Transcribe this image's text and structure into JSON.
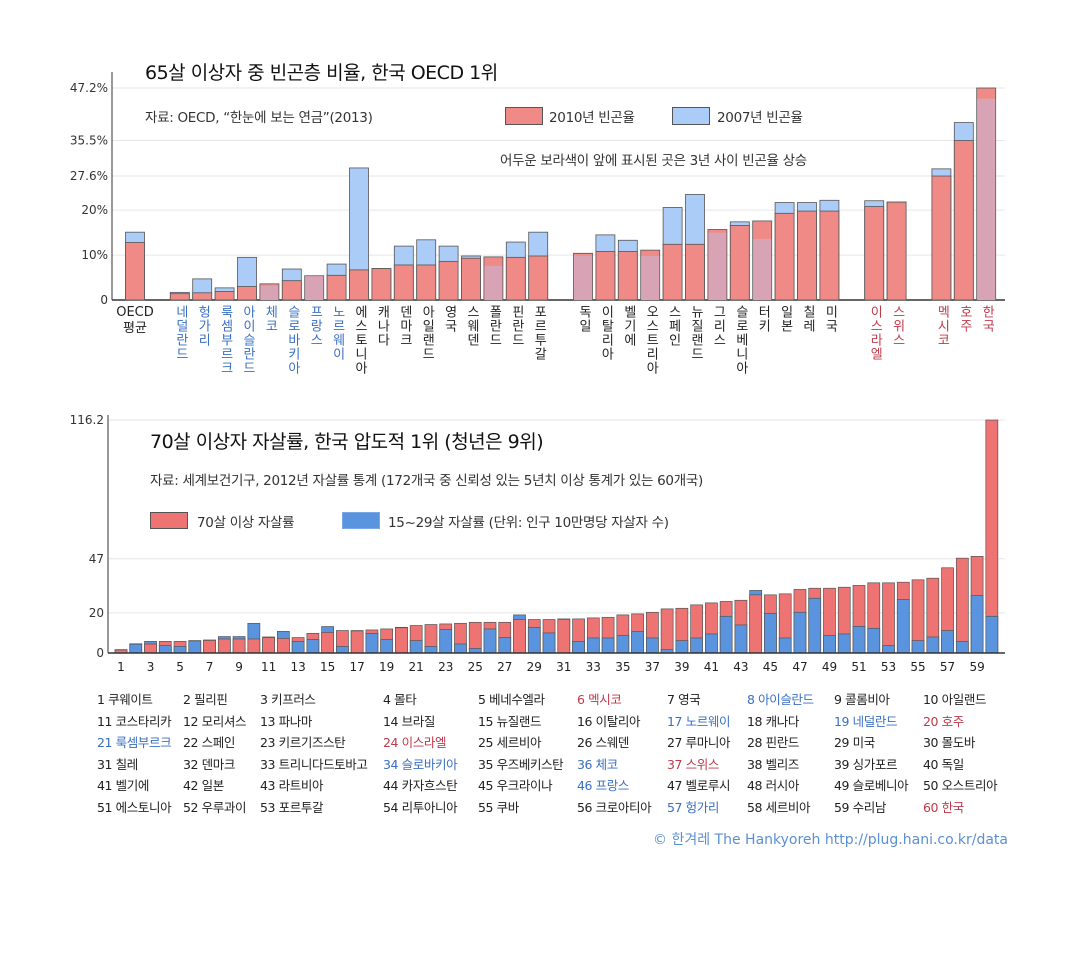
{
  "colors": {
    "red": "#f08a87",
    "blue": "#aaccf7",
    "purple": "#d7a3b5",
    "young": "#5a94de",
    "old": "#ee7373",
    "label_blue": "#3a6fc4",
    "label_red": "#c0394a"
  },
  "chart_data": [
    {
      "type": "bar",
      "title": "65살 이상자 중 빈곤층 비율, 한국 OECD 1위",
      "source": "자료: OECD, “한눈에 보는 연금”(2013)",
      "note": "어두운 보라색이 앞에 표시된 곳은 3년 사이 빈곤율 상승",
      "unit": "%",
      "yticks": [
        0,
        10,
        20,
        27.6,
        35.5,
        47.2
      ],
      "ytick_labels": [
        "0",
        "10%",
        "20%",
        "27.6%",
        "35.5%",
        "47.2%"
      ],
      "ylim": [
        0,
        47.2
      ],
      "grid": true,
      "legend": {
        "position": "top-right",
        "series": [
          "2010년 빈곤율",
          "2007년 빈곤율"
        ]
      },
      "groups": [
        [
          {
            "label": "OECD 평균",
            "v2010": 12.8,
            "v2007": 15.1
          }
        ],
        [
          {
            "label": "네덜란드",
            "v2010": 1.4,
            "v2007": 1.7,
            "hl": "blue"
          },
          {
            "label": "헝가리",
            "v2010": 1.6,
            "v2007": 4.7,
            "hl": "blue"
          },
          {
            "label": "룩셈부르크",
            "v2010": 1.9,
            "v2007": 2.7,
            "hl": "blue"
          },
          {
            "label": "아이슬란드",
            "v2010": 3.0,
            "v2007": 9.5,
            "hl": "blue"
          },
          {
            "label": "체코",
            "v2010": 3.6,
            "v2007": 3.2,
            "hl": "blue"
          },
          {
            "label": "슬로바키아",
            "v2010": 4.3,
            "v2007": 6.9,
            "hl": "blue"
          },
          {
            "label": "프랑스",
            "v2010": 5.4,
            "v2007": 5.3,
            "hl": "blue"
          },
          {
            "label": "노르웨이",
            "v2010": 5.5,
            "v2007": 8.0,
            "hl": "blue"
          },
          {
            "label": "에스토니아",
            "v2010": 6.7,
            "v2007": 29.4
          },
          {
            "label": "캐나다",
            "v2010": 7.0,
            "v2007": 7.0
          },
          {
            "label": "덴마크",
            "v2010": 7.8,
            "v2007": 12.0
          },
          {
            "label": "아일랜드",
            "v2010": 7.8,
            "v2007": 13.4
          },
          {
            "label": "영국",
            "v2010": 8.6,
            "v2007": 12.0
          },
          {
            "label": "스웨덴",
            "v2010": 9.3,
            "v2007": 9.8
          },
          {
            "label": "폴란드",
            "v2010": 9.6,
            "v2007": 7.6
          },
          {
            "label": "핀란드",
            "v2010": 9.5,
            "v2007": 12.9
          },
          {
            "label": "포르투갈",
            "v2010": 9.8,
            "v2007": 15.1
          }
        ],
        [
          {
            "label": "독일",
            "v2010": 10.4,
            "v2007": 9.9
          },
          {
            "label": "이탈리아",
            "v2010": 10.8,
            "v2007": 14.5
          },
          {
            "label": "벨기에",
            "v2010": 10.8,
            "v2007": 13.3
          },
          {
            "label": "오스트리아",
            "v2010": 11.1,
            "v2007": 9.8
          },
          {
            "label": "스페인",
            "v2010": 12.4,
            "v2007": 20.6
          },
          {
            "label": "뉴질랜드",
            "v2010": 12.4,
            "v2007": 23.5
          },
          {
            "label": "그리스",
            "v2010": 15.7,
            "v2007": 15.0
          },
          {
            "label": "슬로베니아",
            "v2010": 16.6,
            "v2007": 17.4
          },
          {
            "label": "터키",
            "v2010": 17.6,
            "v2007": 13.6
          },
          {
            "label": "일본",
            "v2010": 19.3,
            "v2007": 21.7
          },
          {
            "label": "칠레",
            "v2010": 19.8,
            "v2007": 21.7
          },
          {
            "label": "미국",
            "v2010": 19.8,
            "v2007": 22.2
          }
        ],
        [
          {
            "label": "이스라엘",
            "v2010": 20.8,
            "v2007": 22.1,
            "hl": "red"
          },
          {
            "label": "스위스",
            "v2010": 21.8,
            "v2007": 21.8,
            "hl": "red"
          }
        ],
        [
          {
            "label": "멕시코",
            "v2010": 27.6,
            "v2007": 29.2,
            "hl": "red"
          },
          {
            "label": "호주",
            "v2010": 35.5,
            "v2007": 39.5,
            "hl": "red"
          },
          {
            "label": "한국",
            "v2010": 47.2,
            "v2007": 44.8,
            "hl": "red"
          }
        ]
      ]
    },
    {
      "type": "bar",
      "title": "70살 이상자 자살률, 한국 압도적 1위 (청년은 9위)",
      "source": "자료: 세계보건기구, 2012년 자살률 통계 (172개국 중 신뢰성 있는 5년치 이상 통계가 있는 60개국)",
      "legend": {
        "position": "top-left",
        "series": [
          "70살 이상 자살률",
          "15~29살 자살률 (단위: 인구 10만명당 자살자 수)"
        ]
      },
      "yticks": [
        0,
        20,
        47,
        116.2
      ],
      "ytick_labels": [
        "0",
        "20",
        "47",
        "116.2"
      ],
      "ylim": [
        0,
        116.2
      ],
      "grid": true,
      "xtick_labels": [
        "1",
        "3",
        "5",
        "7",
        "9",
        "11",
        "13",
        "15",
        "17",
        "19",
        "21",
        "23",
        "25",
        "27",
        "29",
        "31",
        "33",
        "35",
        "37",
        "39",
        "41",
        "43",
        "45",
        "47",
        "49",
        "51",
        "53",
        "55",
        "57",
        "59"
      ],
      "x": [
        1,
        2,
        3,
        4,
        5,
        6,
        7,
        8,
        9,
        10,
        11,
        12,
        13,
        14,
        15,
        16,
        17,
        18,
        19,
        20,
        21,
        22,
        23,
        24,
        25,
        26,
        27,
        28,
        29,
        30,
        31,
        32,
        33,
        34,
        35,
        36,
        37,
        38,
        39,
        40,
        41,
        42,
        43,
        44,
        45,
        46,
        47,
        48,
        49,
        50,
        51,
        52,
        53,
        54,
        55,
        56,
        57,
        58,
        59,
        60
      ],
      "series": [
        {
          "name": "70살 이상 자살률",
          "values": [
            1.5,
            4.6,
            4.5,
            5.8,
            5.8,
            6.2,
            6.3,
            7.0,
            7.0,
            7.0,
            7.7,
            7.3,
            7.7,
            9.8,
            10.3,
            11.2,
            11.0,
            11.5,
            12.0,
            12.6,
            13.7,
            14.2,
            14.5,
            14.8,
            15.3,
            15.3,
            15.3,
            16.7,
            16.7,
            16.7,
            16.8,
            17.0,
            17.5,
            17.8,
            19.0,
            19.5,
            20.3,
            22.0,
            22.3,
            24.0,
            25.0,
            25.7,
            26.3,
            29.0,
            29.0,
            29.5,
            31.7,
            32.3,
            32.3,
            32.8,
            33.7,
            35.0,
            35.0,
            35.3,
            36.5,
            37.3,
            42.5,
            47.3,
            48.2,
            116.2
          ]
        },
        {
          "name": "15~29살 자살률",
          "values": [
            1.7,
            4.4,
            5.8,
            3.7,
            3.3,
            6.0,
            6.5,
            8.2,
            8.2,
            14.8,
            8.0,
            10.8,
            5.8,
            6.7,
            13.2,
            3.3,
            11.2,
            9.8,
            6.7,
            12.8,
            6.2,
            3.3,
            11.7,
            4.5,
            2.3,
            12.0,
            7.8,
            19.0,
            12.8,
            10.0,
            17.0,
            5.8,
            7.5,
            7.5,
            8.7,
            10.7,
            7.5,
            1.7,
            6.2,
            7.5,
            9.5,
            18.3,
            14.0,
            31.2,
            19.7,
            7.5,
            20.3,
            27.3,
            8.7,
            9.5,
            13.3,
            12.3,
            3.7,
            26.7,
            6.2,
            8.0,
            11.2,
            5.8,
            28.7,
            18.3
          ]
        }
      ],
      "countries": [
        {
          "n": "1",
          "name": "쿠웨이트"
        },
        {
          "n": "2",
          "name": "필리핀"
        },
        {
          "n": "3",
          "name": "키프러스"
        },
        {
          "n": "4",
          "name": "몰타"
        },
        {
          "n": "5",
          "name": "베네수엘라"
        },
        {
          "n": "6",
          "name": "멕시코",
          "hl": "red"
        },
        {
          "n": "7",
          "name": "영국"
        },
        {
          "n": "8",
          "name": "아이슬란드",
          "hl": "blue"
        },
        {
          "n": "9",
          "name": "콜롬비아"
        },
        {
          "n": "10",
          "name": "아일랜드"
        },
        {
          "n": "11",
          "name": "코스타리카"
        },
        {
          "n": "12",
          "name": "모리셔스"
        },
        {
          "n": "13",
          "name": "파나마"
        },
        {
          "n": "14",
          "name": "브라질"
        },
        {
          "n": "15",
          "name": "뉴질랜드"
        },
        {
          "n": "16",
          "name": "이탈리아"
        },
        {
          "n": "17",
          "name": "노르웨이",
          "hl": "blue"
        },
        {
          "n": "18",
          "name": "캐나다"
        },
        {
          "n": "19",
          "name": "네덜란드",
          "hl": "blue"
        },
        {
          "n": "20",
          "name": "호주",
          "hl": "red"
        },
        {
          "n": "21",
          "name": "룩셈부르크",
          "hl": "blue"
        },
        {
          "n": "22",
          "name": "스페인"
        },
        {
          "n": "23",
          "name": "키르기즈스탄"
        },
        {
          "n": "24",
          "name": "이스라엘",
          "hl": "red"
        },
        {
          "n": "25",
          "name": "세르비아"
        },
        {
          "n": "26",
          "name": "스웨덴"
        },
        {
          "n": "27",
          "name": "루마니아"
        },
        {
          "n": "28",
          "name": "핀란드"
        },
        {
          "n": "29",
          "name": "미국"
        },
        {
          "n": "30",
          "name": "몰도바"
        },
        {
          "n": "31",
          "name": "칠레"
        },
        {
          "n": "32",
          "name": "덴마크"
        },
        {
          "n": "33",
          "name": "트리니다드토바고"
        },
        {
          "n": "34",
          "name": "슬로바키아",
          "hl": "blue"
        },
        {
          "n": "35",
          "name": "우즈베키스탄"
        },
        {
          "n": "36",
          "name": "체코",
          "hl": "blue"
        },
        {
          "n": "37",
          "name": "스위스",
          "hl": "red"
        },
        {
          "n": "38",
          "name": "벨리즈"
        },
        {
          "n": "39",
          "name": "싱가포르"
        },
        {
          "n": "40",
          "name": "독일"
        },
        {
          "n": "41",
          "name": "벨기에"
        },
        {
          "n": "42",
          "name": "일본"
        },
        {
          "n": "43",
          "name": "라트비아"
        },
        {
          "n": "44",
          "name": "카자흐스탄"
        },
        {
          "n": "45",
          "name": "우크라이나"
        },
        {
          "n": "46",
          "name": "프랑스",
          "hl": "blue"
        },
        {
          "n": "47",
          "name": "벨로루시"
        },
        {
          "n": "48",
          "name": "러시아"
        },
        {
          "n": "49",
          "name": "슬로베니아"
        },
        {
          "n": "50",
          "name": "오스트리아"
        },
        {
          "n": "51",
          "name": "에스토니아"
        },
        {
          "n": "52",
          "name": "우루과이"
        },
        {
          "n": "53",
          "name": "포르투갈"
        },
        {
          "n": "54",
          "name": "리투아니아"
        },
        {
          "n": "55",
          "name": "쿠바"
        },
        {
          "n": "56",
          "name": "크로아티아"
        },
        {
          "n": "57",
          "name": "헝가리",
          "hl": "blue"
        },
        {
          "n": "58",
          "name": "세르비아"
        },
        {
          "n": "59",
          "name": "수리남"
        },
        {
          "n": "60",
          "name": "한국",
          "hl": "red"
        }
      ]
    }
  ],
  "credit": "© 한겨레 The Hankyoreh http://plug.hani.co.kr/data"
}
